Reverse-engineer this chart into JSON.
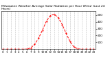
{
  "title": "Milwaukee Weather Average Solar Radiation per Hour W/m2 (Last 24 Hours)",
  "background_color": "#ffffff",
  "line_color": "#ff0000",
  "line_style": "--",
  "hours": [
    0,
    1,
    2,
    3,
    4,
    5,
    6,
    7,
    8,
    9,
    10,
    11,
    12,
    13,
    14,
    15,
    16,
    17,
    18,
    19,
    20,
    21,
    22,
    23
  ],
  "values": [
    0,
    0,
    0,
    0,
    0,
    0,
    2,
    18,
    70,
    160,
    280,
    410,
    490,
    510,
    460,
    360,
    230,
    110,
    30,
    5,
    0,
    0,
    0,
    0
  ],
  "ylim": [
    0,
    560
  ],
  "yticks": [
    100,
    200,
    300,
    400,
    500
  ],
  "grid_color": "#888888",
  "grid_style": ":",
  "title_fontsize": 3.2,
  "tick_fontsize": 3.0,
  "figsize": [
    1.6,
    0.87
  ],
  "dpi": 100
}
